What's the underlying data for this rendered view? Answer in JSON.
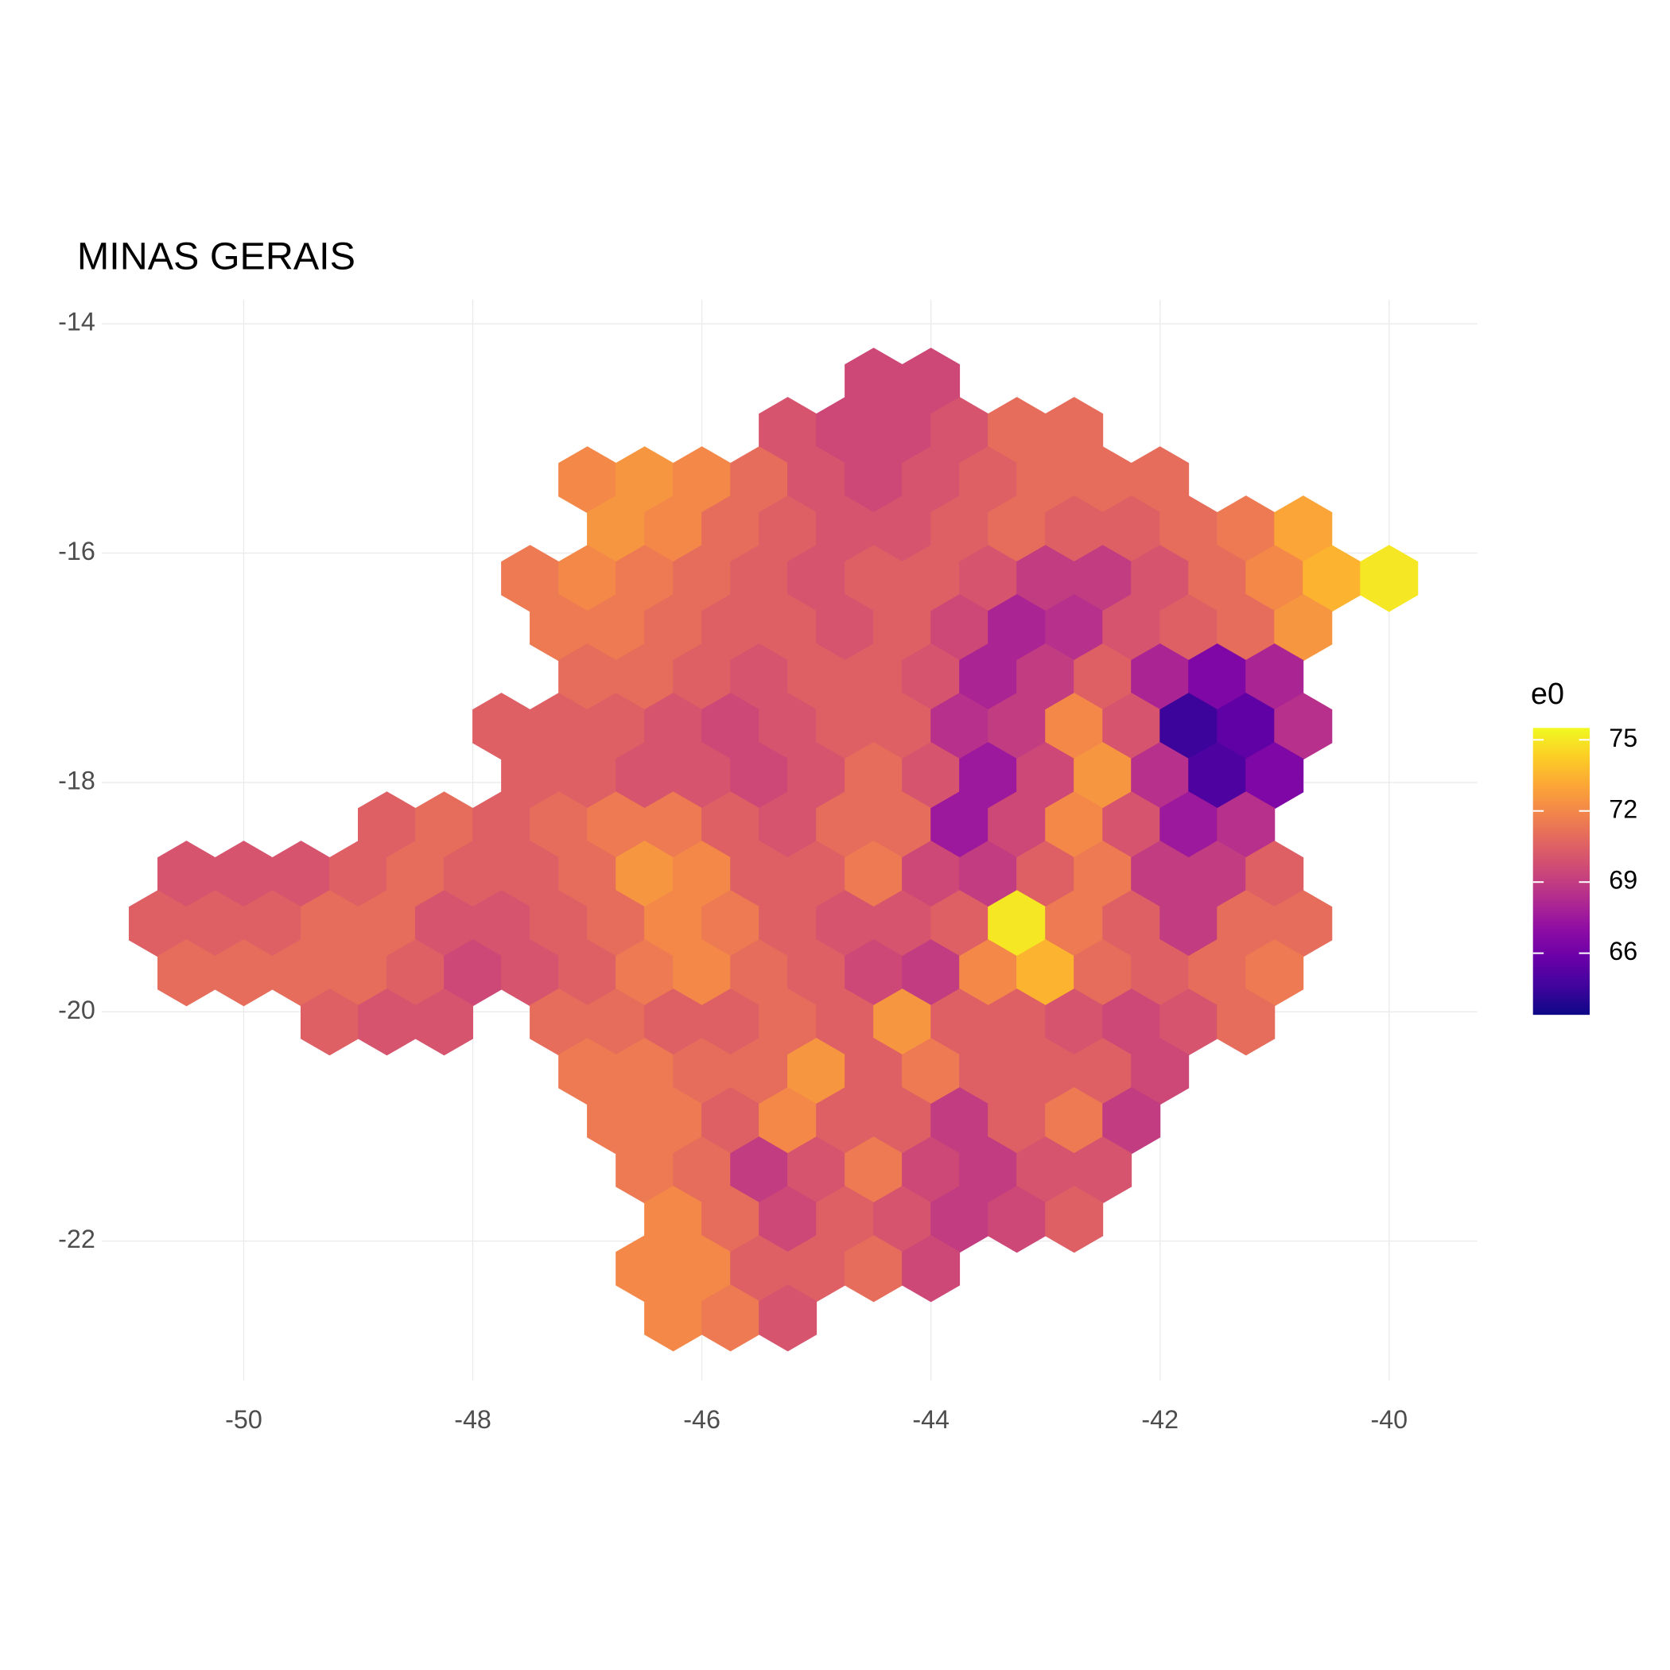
{
  "chart_data": {
    "type": "hexbin",
    "title": "MINAS GERAIS",
    "legend_title": "e0",
    "colormap": "plasma",
    "colorlim": [
      63.4,
      75.5
    ],
    "colorbar_ticks": [
      66,
      69,
      72,
      75
    ],
    "xlim": [
      -51.24,
      -39.23
    ],
    "ylim": [
      -23.22,
      -13.79
    ],
    "xticks": [
      -50,
      -48,
      -46,
      -44,
      -42,
      -40
    ],
    "yticks": [
      -22,
      -20,
      -18,
      -16,
      -14
    ],
    "grid": true,
    "rows": [
      {
        "y": -14.5,
        "x": [
          -44.5,
          -44.0
        ],
        "values": [
          69.5,
          69.5
        ]
      },
      {
        "y": -14.93,
        "x": [
          -45.25,
          -44.75,
          -44.25,
          -43.75,
          -43.25,
          -42.75
        ],
        "values": [
          70,
          69.5,
          69.5,
          70,
          71,
          71
        ]
      },
      {
        "y": -15.36,
        "x": [
          -47.0,
          -46.5,
          -46.0,
          -45.5,
          -45.0,
          -44.5,
          -44.0,
          -43.5,
          -43.0,
          -42.5,
          -42.0
        ],
        "values": [
          72,
          72.5,
          72,
          71,
          70,
          69.5,
          70,
          70.5,
          71,
          71,
          71
        ]
      },
      {
        "y": -15.79,
        "x": [
          -46.75,
          -46.25,
          -45.75,
          -45.25,
          -44.75,
          -44.25,
          -43.75,
          -43.25,
          -42.75,
          -42.25,
          -41.75,
          -41.25,
          -40.75
        ],
        "values": [
          72.5,
          72,
          71,
          70.5,
          70,
          70,
          70.5,
          71,
          70.5,
          70.5,
          71,
          71.5,
          73
        ]
      },
      {
        "y": -16.22,
        "x": [
          -47.5,
          -47.0,
          -46.5,
          -46.0,
          -45.5,
          -45.0,
          -44.5,
          -44.0,
          -43.5,
          -43.0,
          -42.5,
          -42.0,
          -41.5,
          -41.0,
          -40.5,
          -40.0
        ],
        "values": [
          71.5,
          72,
          71.5,
          71,
          70.5,
          70,
          70.5,
          70.5,
          70,
          69,
          69,
          70,
          71,
          72,
          73.5,
          75
        ]
      },
      {
        "y": -16.65,
        "x": [
          -47.25,
          -46.75,
          -46.25,
          -45.75,
          -45.25,
          -44.75,
          -44.25,
          -43.75,
          -43.25,
          -42.75,
          -42.25,
          -41.75,
          -41.25,
          -40.75
        ],
        "values": [
          71.5,
          71.5,
          71,
          70.5,
          70.5,
          70,
          70.5,
          69.5,
          68,
          68.5,
          70,
          70.5,
          71,
          72.5
        ]
      },
      {
        "y": -17.08,
        "x": [
          -47.0,
          -46.5,
          -46.0,
          -45.5,
          -45.0,
          -44.5,
          -44.0,
          -43.5,
          -43.0,
          -42.5,
          -42.0,
          -41.5,
          -41.0
        ],
        "values": [
          71,
          71,
          70.5,
          70,
          70.5,
          70.5,
          70,
          68,
          69,
          70.5,
          68,
          66.5,
          68
        ]
      },
      {
        "y": -17.51,
        "x": [
          -47.75,
          -47.25,
          -46.75,
          -46.25,
          -45.75,
          -45.25,
          -44.75,
          -44.25,
          -43.75,
          -43.25,
          -42.75,
          -42.25,
          -41.75,
          -41.25,
          -40.75
        ],
        "values": [
          70.5,
          70.5,
          70.5,
          70,
          69.5,
          70,
          70.5,
          70.5,
          68.5,
          69,
          72,
          70,
          64.5,
          65.5,
          68.5
        ]
      },
      {
        "y": -17.94,
        "x": [
          -47.5,
          -47.0,
          -46.5,
          -46.0,
          -45.5,
          -45.0,
          -44.5,
          -44.0,
          -43.5,
          -43.0,
          -42.5,
          -42.0,
          -41.5,
          -41.0
        ],
        "values": [
          70.5,
          70.5,
          70,
          70,
          69.5,
          70,
          71,
          70,
          67.5,
          69.5,
          72.5,
          68.5,
          65,
          66.5
        ]
      },
      {
        "y": -18.37,
        "x": [
          -48.75,
          -48.25,
          -47.75,
          -47.25,
          -46.75,
          -46.25,
          -45.75,
          -45.25,
          -44.75,
          -44.25,
          -43.75,
          -43.25,
          -42.75,
          -42.25,
          -41.75,
          -41.25
        ],
        "values": [
          70.5,
          71,
          70.5,
          71,
          71.5,
          71.5,
          70.5,
          70,
          71,
          71,
          67.5,
          69.5,
          72,
          70,
          67.5,
          68.5
        ]
      },
      {
        "y": -18.8,
        "x": [
          -50.5,
          -50.0,
          -49.5,
          -49.0,
          -48.5,
          -48.0,
          -47.5,
          -47.0,
          -46.5,
          -46.0,
          -45.5,
          -45.0,
          -44.5,
          -44.0,
          -43.5,
          -43.0,
          -42.5,
          -42.0,
          -41.5,
          -41.0
        ],
        "values": [
          70,
          70,
          70,
          70.5,
          71,
          70.5,
          70.5,
          71,
          72.5,
          72,
          70.5,
          70.5,
          71.5,
          69.5,
          69,
          70.5,
          71.5,
          69,
          69,
          70.5
        ]
      },
      {
        "y": -19.23,
        "x": [
          -50.75,
          -50.25,
          -49.75,
          -49.25,
          -48.75,
          -48.25,
          -47.75,
          -47.25,
          -46.75,
          -46.25,
          -45.75,
          -45.25,
          -44.75,
          -44.25,
          -43.75,
          -43.25,
          -42.75,
          -42.25,
          -41.75,
          -41.25,
          -40.75
        ],
        "values": [
          70.5,
          70.5,
          70.5,
          71,
          71,
          70,
          70,
          70.5,
          71,
          72,
          71.5,
          70.5,
          70,
          70,
          70.5,
          75,
          71.5,
          70.5,
          69,
          71,
          71
        ]
      },
      {
        "y": -19.66,
        "x": [
          -50.5,
          -50.0,
          -49.5,
          -49.0,
          -48.5,
          -48.0,
          -47.5,
          -47.0,
          -46.5,
          -46.0,
          -45.5,
          -45.0,
          -44.5,
          -44.0,
          -43.5,
          -43.0,
          -42.5,
          -42.0,
          -41.5,
          -41.0
        ],
        "values": [
          71,
          71,
          71,
          71,
          70.5,
          69.5,
          70,
          70.5,
          71.5,
          72,
          71,
          70.5,
          69.5,
          69,
          72,
          73.5,
          71,
          70.5,
          71,
          71.5
        ]
      },
      {
        "y": -20.09,
        "x": [
          -49.25,
          -48.75,
          -48.25,
          -47.25,
          -46.75,
          -46.25,
          -45.75,
          -45.25,
          -44.75,
          -44.25,
          -43.75,
          -43.25,
          -42.75,
          -42.25,
          -41.75,
          -41.25
        ],
        "values": [
          70.5,
          70,
          70,
          71,
          71,
          70.5,
          70.5,
          71,
          70.5,
          72.5,
          70.5,
          70.5,
          70,
          69.5,
          70,
          71
        ]
      },
      {
        "y": -20.52,
        "x": [
          -47.0,
          -46.5,
          -46.0,
          -45.5,
          -45.0,
          -44.5,
          -44.0,
          -43.5,
          -43.0,
          -42.5,
          -42.0
        ],
        "values": [
          71.5,
          71.5,
          71,
          71,
          72.5,
          70.5,
          71.5,
          70.5,
          70.5,
          70.5,
          69.5
        ]
      },
      {
        "y": -20.95,
        "x": [
          -46.75,
          -46.25,
          -45.75,
          -45.25,
          -44.75,
          -44.25,
          -43.75,
          -43.25,
          -42.75,
          -42.25
        ],
        "values": [
          71.5,
          71.5,
          70.5,
          72,
          70.5,
          70.5,
          69,
          70.5,
          71.5,
          69
        ]
      },
      {
        "y": -21.38,
        "x": [
          -46.5,
          -46.0,
          -45.5,
          -45.0,
          -44.5,
          -44.0,
          -43.5,
          -43.0,
          -42.5
        ],
        "values": [
          71.5,
          71,
          69,
          70,
          71.5,
          69.5,
          69,
          70,
          70
        ]
      },
      {
        "y": -21.81,
        "x": [
          -46.25,
          -45.75,
          -45.25,
          -44.75,
          -44.25,
          -43.75,
          -43.25,
          -42.75
        ],
        "values": [
          72,
          71,
          69.5,
          70.5,
          70,
          69,
          69.5,
          70.5
        ]
      },
      {
        "y": -22.24,
        "x": [
          -46.5,
          -46.0,
          -45.5,
          -45.0,
          -44.5,
          -44.0
        ],
        "values": [
          72,
          72,
          70.5,
          70.5,
          71,
          69.5
        ]
      },
      {
        "y": -22.67,
        "x": [
          -46.25,
          -45.75,
          -45.25
        ],
        "values": [
          72,
          71.5,
          70
        ]
      }
    ]
  }
}
